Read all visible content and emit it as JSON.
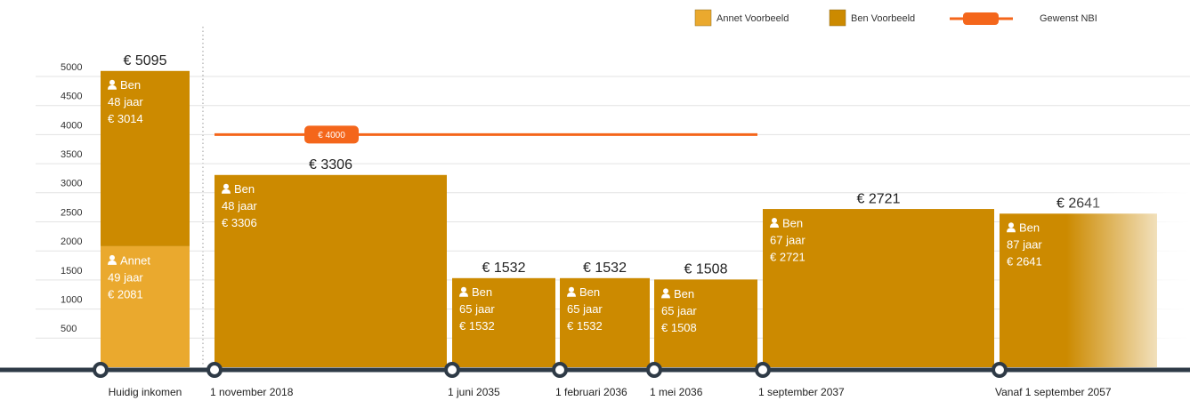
{
  "chart_data": {
    "type": "stacked-bar",
    "categories": [
      "Huidig inkomen",
      "1 november 2018",
      "1 juni 2035",
      "1 februari 2036",
      "1 mei 2036",
      "1 september 2037",
      "Vanaf 1 september 2057"
    ],
    "series": [
      {
        "name": "Annet Voorbeeld",
        "label": "Annet",
        "color": "#eaa92e",
        "values": [
          2081,
          null,
          null,
          null,
          null,
          null,
          null
        ],
        "value_labels": [
          "€ 2081",
          null,
          null,
          null,
          null,
          null,
          null
        ],
        "ages": [
          "49 jaar",
          null,
          null,
          null,
          null,
          null,
          null
        ]
      },
      {
        "name": "Ben Voorbeeld",
        "label": "Ben",
        "color": "#cc8a00",
        "values": [
          3014,
          3306,
          1532,
          1532,
          1508,
          2721,
          2641
        ],
        "value_labels": [
          "€ 3014",
          "€ 3306",
          "€ 1532",
          "€ 1532",
          "€ 1508",
          "€ 2721",
          "€ 2641"
        ],
        "ages": [
          "48 jaar",
          "48 jaar",
          "65 jaar",
          "65 jaar",
          "65 jaar",
          "67 jaar",
          "87 jaar"
        ]
      }
    ],
    "total_labels": [
      "€ 5095",
      "€ 3306",
      "€ 1532",
      "€ 1532",
      "€ 1508",
      "€ 2721",
      "€ 2641"
    ],
    "target": {
      "name": "Gewenst NBI",
      "value": 4000,
      "label": "€ 4000",
      "color": "#f4661b"
    },
    "ylim": [
      0,
      5500
    ],
    "yticks": [
      500,
      1000,
      1500,
      2000,
      2500,
      3000,
      3500,
      4000,
      4500,
      5000
    ],
    "grid": true
  }
}
